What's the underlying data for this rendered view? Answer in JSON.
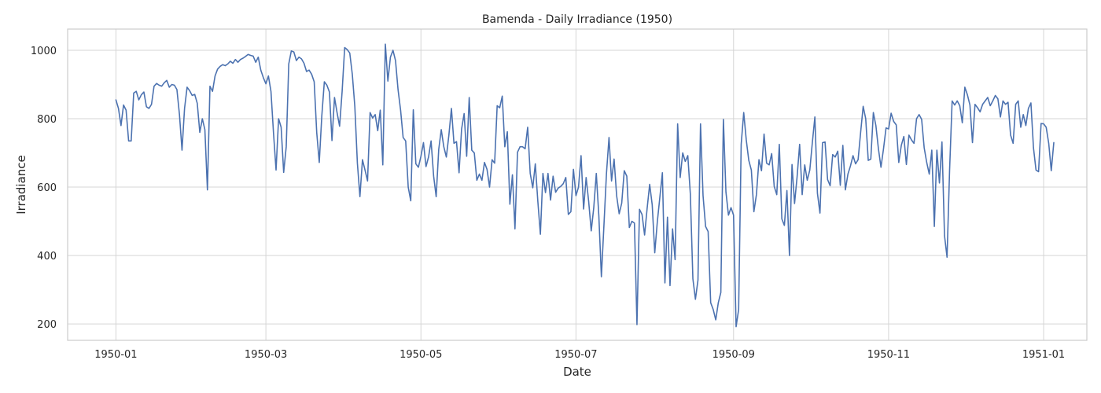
{
  "chart_data": {
    "type": "line",
    "title": "Bamenda - Daily Irradiance (1950)",
    "xlabel": "Date",
    "ylabel": "Irradiance",
    "x_start": "1950-01-01",
    "x_end": "1950-12-31",
    "xlim": [
      "1949-12-13",
      "1951-01-18"
    ],
    "ylim": [
      152,
      1062
    ],
    "x_ticks": [
      "1950-01",
      "1950-03",
      "1950-05",
      "1950-07",
      "1950-09",
      "1950-11",
      "1951-01"
    ],
    "y_ticks": [
      200,
      400,
      600,
      800,
      1000
    ],
    "grid": true,
    "legend": "none",
    "series": [
      {
        "color": "#4c72b0",
        "values": [
          855,
          830,
          780,
          840,
          825,
          735,
          735,
          875,
          880,
          855,
          870,
          878,
          835,
          830,
          842,
          895,
          903,
          898,
          895,
          905,
          912,
          892,
          900,
          898,
          885,
          812,
          708,
          830,
          892,
          882,
          868,
          871,
          845,
          760,
          800,
          768,
          592,
          895,
          880,
          925,
          945,
          953,
          958,
          955,
          960,
          968,
          962,
          973,
          965,
          973,
          977,
          982,
          988,
          985,
          983,
          965,
          980,
          942,
          920,
          902,
          925,
          880,
          758,
          650,
          800,
          775,
          643,
          718,
          960,
          998,
          995,
          970,
          980,
          975,
          962,
          938,
          942,
          930,
          908,
          760,
          672,
          808,
          908,
          898,
          878,
          736,
          862,
          818,
          778,
          880,
          1008,
          1002,
          992,
          930,
          835,
          670,
          572,
          680,
          650,
          618,
          818,
          802,
          812,
          765,
          825,
          665,
          1018,
          910,
          980,
          1000,
          970,
          885,
          825,
          745,
          735,
          600,
          560,
          826,
          668,
          658,
          690,
          730,
          660,
          688,
          735,
          632,
          572,
          710,
          768,
          718,
          688,
          752,
          830,
          728,
          733,
          642,
          770,
          815,
          690,
          862,
          708,
          700,
          620,
          638,
          620,
          672,
          652,
          600,
          680,
          670,
          838,
          832,
          866,
          718,
          762,
          550,
          636,
          478,
          702,
          718,
          718,
          712,
          775,
          640,
          598,
          668,
          558,
          462,
          640,
          584,
          640,
          562,
          632,
          585,
          597,
          602,
          610,
          628,
          520,
          528,
          652,
          575,
          600,
          692,
          536,
          628,
          558,
          472,
          540,
          640,
          516,
          338,
          488,
          640,
          745,
          618,
          682,
          575,
          522,
          553,
          648,
          632,
          482,
          500,
          495,
          198,
          535,
          520,
          460,
          538,
          608,
          548,
          408,
          498,
          570,
          642,
          320,
          512,
          312,
          478,
          388,
          785,
          628,
          700,
          675,
          692,
          580,
          332,
          272,
          328,
          785,
          575,
          485,
          470,
          262,
          242,
          212,
          262,
          292,
          798,
          586,
          518,
          540,
          518,
          192,
          242,
          725,
          818,
          738,
          678,
          650,
          528,
          578,
          680,
          648,
          755,
          670,
          665,
          698,
          602,
          578,
          725,
          507,
          488,
          590,
          400,
          666,
          552,
          630,
          725,
          578,
          665,
          620,
          650,
          730,
          805,
          582,
          524,
          730,
          732,
          622,
          604,
          695,
          688,
          705,
          605,
          722,
          592,
          638,
          662,
          692,
          668,
          680,
          760,
          836,
          800,
          678,
          682,
          818,
          780,
          712,
          658,
          712,
          773,
          770,
          816,
          792,
          782,
          672,
          722,
          748,
          666,
          752,
          738,
          728,
          800,
          812,
          798,
          715,
          672,
          638,
          708,
          485,
          708,
          612,
          732,
          458,
          395,
          650,
          852,
          840,
          852,
          838,
          788,
          892,
          870,
          840,
          730,
          842,
          832,
          820,
          842,
          852,
          862,
          838,
          852,
          868,
          858,
          805,
          852,
          842,
          848,
          752,
          728,
          842,
          852,
          775,
          812,
          780,
          830,
          846,
          715,
          650,
          645,
          786,
          785,
          775,
          728,
          648,
          730
        ]
      }
    ]
  }
}
